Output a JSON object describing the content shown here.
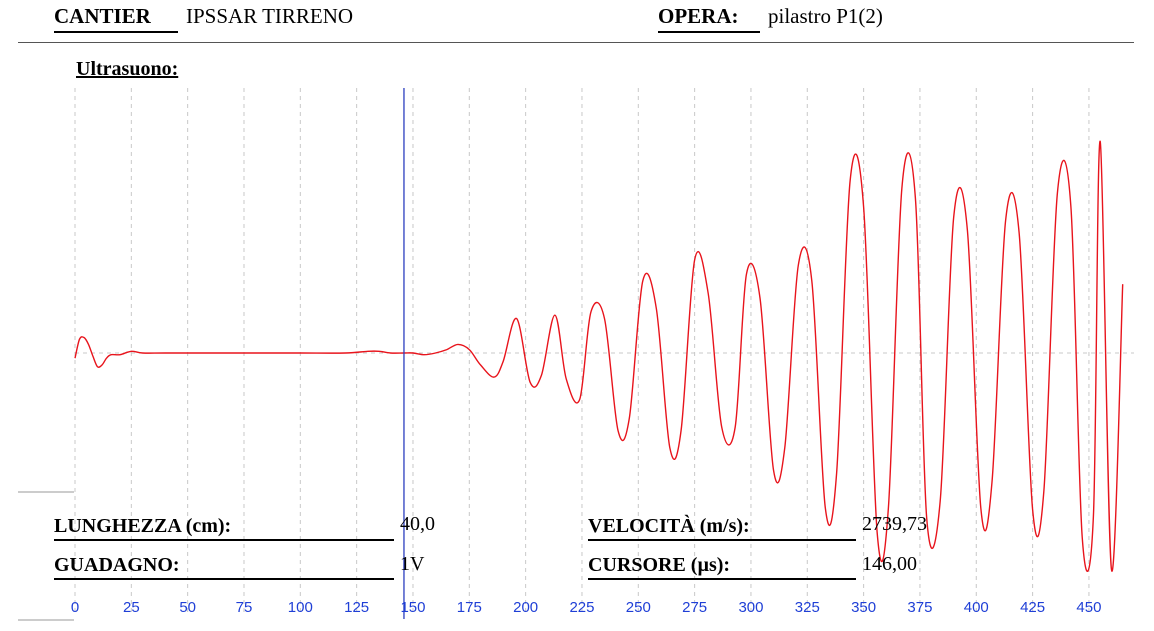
{
  "header": {
    "cantier_label": "CANTIER",
    "cantier_value": "IPSSAR TIRRENO",
    "opera_label": "OPERA:",
    "opera_value": "pilastro P1(2)"
  },
  "section_title": "Ultrasuono:",
  "readouts": {
    "lunghezza_label": "LUNGHEZZA (cm):",
    "lunghezza_value": "40,0",
    "guadagno_label": "GUADAGNO:",
    "guadagno_value": "1V",
    "velocita_label": "VELOCITÀ (m/s):",
    "velocita_value": "2739,73",
    "cursore_label": "CURSORE (µs):",
    "cursore_value": "146,00"
  },
  "colors": {
    "signal": "#e8141c",
    "cursor": "#2b3fbf",
    "tick_text": "#1f3fd6",
    "grid": "#c8c8c8"
  },
  "chart_data": {
    "type": "line",
    "xlabel": "",
    "ylabel": "",
    "xlim": [
      0,
      470
    ],
    "ylim": [
      -1,
      1
    ],
    "x_ticks": [
      0,
      25,
      50,
      75,
      100,
      125,
      150,
      175,
      200,
      225,
      250,
      275,
      300,
      325,
      350,
      375,
      400,
      425,
      450
    ],
    "grid": "vertical dashed at each x tick; horizontal dashed baseline at 0",
    "cursor_x": 146,
    "series": [
      {
        "x": [
          0,
          2,
          4,
          6,
          8,
          10,
          12,
          14,
          16,
          20,
          25,
          30,
          40,
          60,
          80,
          100,
          120,
          130,
          135,
          140,
          146,
          150,
          155,
          160,
          165,
          170,
          175,
          180,
          186,
          190,
          196,
          202,
          207,
          213,
          218,
          224,
          229,
          235,
          241,
          246,
          252,
          258,
          264,
          269,
          275,
          281,
          287,
          293,
          298,
          304,
          310,
          315,
          321,
          327,
          333,
          338,
          344,
          350,
          356,
          361,
          367,
          373,
          378,
          384,
          390,
          396,
          402,
          407,
          413,
          419,
          425,
          430,
          436,
          442,
          447,
          452,
          455,
          460,
          465
        ],
        "y": [
          -0.03,
          0.08,
          0.09,
          0.05,
          -0.02,
          -0.08,
          -0.07,
          -0.03,
          -0.01,
          -0.01,
          0.01,
          0.0,
          0.0,
          0.0,
          0.0,
          0.0,
          0.0,
          0.01,
          0.01,
          0.0,
          0.0,
          0.0,
          -0.01,
          0.0,
          0.02,
          0.05,
          0.02,
          -0.07,
          -0.14,
          -0.05,
          0.2,
          -0.17,
          -0.13,
          0.22,
          -0.15,
          -0.27,
          0.24,
          0.2,
          -0.45,
          -0.38,
          0.42,
          0.26,
          -0.55,
          -0.45,
          0.54,
          0.35,
          -0.43,
          -0.43,
          0.46,
          0.32,
          -0.68,
          -0.55,
          0.51,
          0.42,
          -0.9,
          -0.7,
          1.0,
          0.85,
          -1.04,
          -0.9,
          0.96,
          0.9,
          -0.96,
          -0.86,
          0.79,
          0.72,
          -0.9,
          -0.75,
          0.77,
          0.7,
          -0.91,
          -0.8,
          0.93,
          0.85,
          -1.07,
          -0.95,
          1.23,
          -1.26,
          0.4
        ]
      }
    ]
  }
}
